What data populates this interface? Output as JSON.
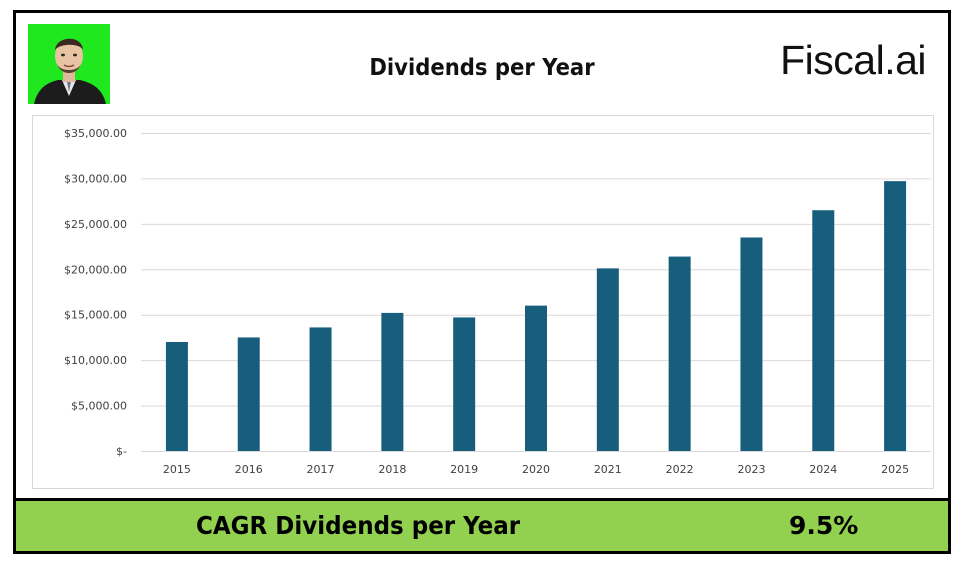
{
  "header": {
    "title": "Dividends per Year",
    "brand": "Fiscal.ai"
  },
  "colors": {
    "bar": "#175d7c",
    "grid": "#d9d9d9",
    "cagr_background": "#92d050",
    "avatar_background": "#1fe81f"
  },
  "chart_data": {
    "type": "bar",
    "title": "Dividends per Year",
    "xlabel": "",
    "ylabel": "",
    "categories": [
      "2015",
      "2016",
      "2017",
      "2018",
      "2019",
      "2020",
      "2021",
      "2022",
      "2023",
      "2024",
      "2025"
    ],
    "values": [
      12000,
      12500,
      13600,
      15200,
      14700,
      16000,
      20100,
      21400,
      23500,
      26500,
      29700
    ],
    "ylim": [
      0,
      35000
    ],
    "yticks": [
      0,
      5000,
      10000,
      15000,
      20000,
      25000,
      30000,
      35000
    ],
    "ytick_labels": [
      "$-",
      "$5,000.00",
      "$10,000.00",
      "$15,000.00",
      "$20,000.00",
      "$25,000.00",
      "$30,000.00",
      "$35,000.00"
    ],
    "grid": true,
    "legend": "none"
  },
  "footer": {
    "cagr_label": "CAGR Dividends per Year",
    "cagr_value": "9.5%"
  }
}
